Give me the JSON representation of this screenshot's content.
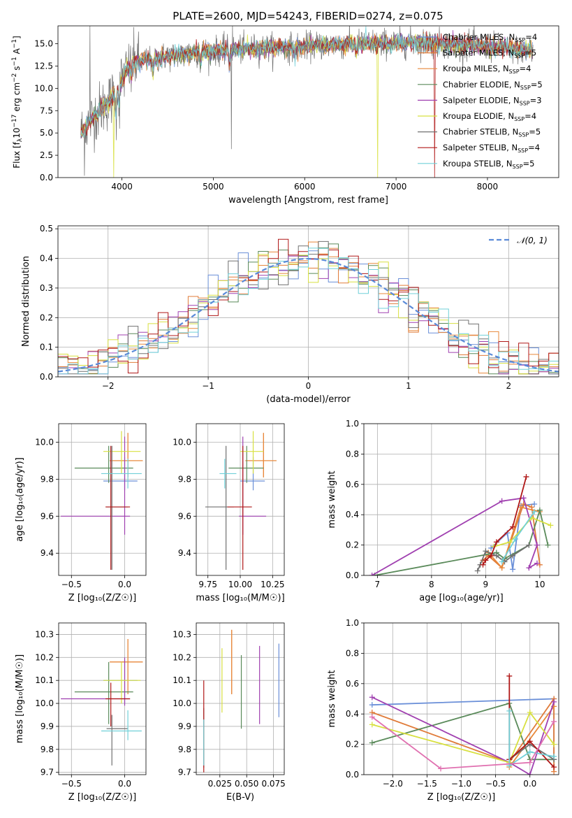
{
  "colors": {
    "miles_chabrier": "#6a8fd8",
    "miles_salpeter": "#e07b39",
    "miles_kroupa": "#e8883a",
    "elodie_chabrier": "#5a8a5a",
    "elodie_salpeter": "#a040b0",
    "elodie_kroupa": "#d8e040",
    "stelib_chabrier": "#707070",
    "stelib_salpeter": "#b01818",
    "stelib_kroupa": "#70d0d8"
  },
  "spectrum": {
    "title": "PLATE=2600, MJD=54243, FIBERID=0274, z=0.075",
    "xlabel": "wavelength [Angstrom, rest frame]",
    "ylabel": "Flux [f",
    "ylabel_sub": "λ",
    "ylabel_rest": "10",
    "ylabel_exp1": "−17",
    "ylabel_mid": " erg cm",
    "ylabel_exp2": "−2",
    "ylabel_mid2": " s",
    "ylabel_exp3": "−1",
    "ylabel_mid3": " A",
    "ylabel_exp4": "−1",
    "ylabel_end": "]",
    "xticks": [
      "4000",
      "5000",
      "6000",
      "7000",
      "8000"
    ],
    "yticks": [
      "0.0",
      "2.5",
      "5.0",
      "7.5",
      "10.0",
      "12.5",
      "15.0"
    ],
    "legend": [
      {
        "pre": "Chabrier MILES, N",
        "sub": "SSP",
        "post": "=4"
      },
      {
        "pre": "Salpeter MILES, N",
        "sub": "SSP",
        "post": "=5"
      },
      {
        "pre": "Kroupa MILES, N",
        "sub": "SSP",
        "post": "=4"
      },
      {
        "pre": "Chabrier ELODIE, N",
        "sub": "SSP",
        "post": "=5"
      },
      {
        "pre": "Salpeter ELODIE, N",
        "sub": "SSP",
        "post": "=3"
      },
      {
        "pre": "Kroupa ELODIE, N",
        "sub": "SSP",
        "post": "=4"
      },
      {
        "pre": "Chabrier STELIB, N",
        "sub": "SSP",
        "post": "=5"
      },
      {
        "pre": "Salpeter STELIB, N",
        "sub": "SSP",
        "post": "=4"
      },
      {
        "pre": "Kroupa STELIB, N",
        "sub": "SSP",
        "post": "=5"
      }
    ]
  },
  "residuals": {
    "xlabel": "(data-model)/error",
    "ylabel": "Normed distribution",
    "legend": "𝒩(0, 1)",
    "xticks": [
      "−2",
      "−1",
      "0",
      "1",
      "2"
    ],
    "yticks": [
      "0.0",
      "0.1",
      "0.2",
      "0.3",
      "0.4",
      "0.5"
    ]
  },
  "age_z": {
    "xlabel": "Z [log₁₀(Z/Z☉)]",
    "ylabel": "age  [log₁₀(age/yr)]",
    "xticks": [
      "−0.5",
      "0.0"
    ],
    "yticks": [
      "9.4",
      "9.6",
      "9.8",
      "10.0"
    ]
  },
  "age_mass": {
    "xlabel": "mass [log₁₀(M/M☉)]",
    "xticks": [
      "9.75",
      "10.00",
      "10.25"
    ],
    "yticks": [
      "9.4",
      "9.6",
      "9.8",
      "10.0"
    ]
  },
  "mw_age": {
    "xlabel": "age  [log₁₀(age/yr)]",
    "ylabel": "mass weight",
    "xticks": [
      "7",
      "8",
      "9",
      "10"
    ],
    "yticks": [
      "0.0",
      "0.2",
      "0.4",
      "0.6",
      "0.8",
      "1.0"
    ]
  },
  "mass_z": {
    "xlabel": "Z [log₁₀(Z/Z☉)]",
    "ylabel": "mass [log₁₀(M/M☉)]",
    "xticks": [
      "−0.5",
      "0.0"
    ],
    "yticks": [
      "9.7",
      "9.8",
      "9.9",
      "10.0",
      "10.1",
      "10.2",
      "10.3"
    ]
  },
  "mass_ebv": {
    "xlabel": "E(B-V)",
    "xticks": [
      "0.025",
      "0.050",
      "0.075"
    ],
    "yticks": [
      "9.7",
      "9.8",
      "9.9",
      "10.0",
      "10.1",
      "10.2",
      "10.3"
    ]
  },
  "mw_z": {
    "xlabel": "Z [log₁₀(Z/Z☉)]",
    "ylabel": "mass weight",
    "xticks": [
      "−2.0",
      "−1.5",
      "−1.0",
      "−0.5",
      "0.0"
    ],
    "yticks": [
      "0.0",
      "0.2",
      "0.4",
      "0.6",
      "0.8",
      "1.0"
    ]
  },
  "chart_data": [
    {
      "type": "line",
      "title": "PLATE=2600, MJD=54243, FIBERID=0274, z=0.075",
      "xlabel": "wavelength [Angstrom, rest frame]",
      "xlim": [
        3300,
        8780
      ],
      "ylim": [
        0,
        17
      ],
      "grid": false,
      "legend_position": "right",
      "continuum": {
        "x": [
          3550,
          3700,
          3900,
          4000,
          4100,
          4300,
          4500,
          4800,
          5000,
          5200,
          5500,
          5800,
          6000,
          6300,
          6600,
          6900,
          7100,
          7300,
          7500,
          7800,
          8100,
          8400,
          8500
        ],
        "y": [
          5.0,
          7.0,
          9.0,
          11.0,
          12.8,
          13.2,
          13.6,
          14.0,
          14.2,
          14.3,
          14.5,
          14.6,
          14.7,
          14.9,
          15.0,
          15.1,
          15.1,
          15.1,
          15.0,
          14.8,
          14.6,
          14.3,
          14.2
        ]
      },
      "series_names": [
        "Chabrier MILES",
        "Salpeter MILES",
        "Kroupa MILES",
        "Chabrier ELODIE",
        "Salpeter ELODIE",
        "Kroupa ELODIE",
        "Chabrier STELIB",
        "Salpeter STELIB",
        "Kroupa STELIB"
      ],
      "model_dropouts": [
        {
          "series": 5,
          "x": 3910
        },
        {
          "series": 5,
          "x": 6800
        },
        {
          "series": 7,
          "x": 7420
        }
      ]
    },
    {
      "type": "line",
      "xlabel": "(data-model)/error",
      "ylabel": "Normed distribution",
      "xlim": [
        -2.5,
        2.5
      ],
      "ylim": [
        0,
        0.51
      ],
      "grid": true,
      "reference": {
        "name": "𝒩(0, 1)",
        "mean": 0,
        "sigma": 1
      },
      "histogram_bins": {
        "start": -2.5,
        "width": 0.1,
        "count": 50
      }
    },
    {
      "type": "scatter",
      "xlabel": "Z [log₁₀(Z/Z☉)]",
      "ylabel": "age  [log₁₀(age/yr)]",
      "xlim": [
        -0.62,
        0.2
      ],
      "ylim": [
        9.28,
        10.1
      ],
      "points": [
        {
          "series": "Chabrier MILES",
          "x": 0.0,
          "xerr": [
            0.2,
            0.12
          ],
          "y": 9.79,
          "yerr": [
            0.05,
            0.13
          ]
        },
        {
          "series": "Salpeter MILES",
          "x": 0.03,
          "xerr": [
            0.17,
            0.14
          ],
          "y": 9.9,
          "yerr": [
            0.09,
            0.15
          ]
        },
        {
          "series": "Kroupa MILES",
          "x": 0.03,
          "xerr": [
            0.17,
            0.14
          ],
          "y": 9.9,
          "yerr": [
            0.09,
            0.15
          ]
        },
        {
          "series": "Chabrier ELODIE",
          "x": -0.15,
          "xerr": [
            0.32,
            0.23
          ],
          "y": 9.86,
          "yerr": [
            0.08,
            0.12
          ]
        },
        {
          "series": "Salpeter ELODIE",
          "x": 0.0,
          "xerr": [
            0.6,
            0.05
          ],
          "y": 9.6,
          "yerr": [
            0.1,
            0.43
          ]
        },
        {
          "series": "Kroupa ELODIE",
          "x": -0.03,
          "xerr": [
            0.17,
            0.18
          ],
          "y": 9.95,
          "yerr": [
            0.12,
            0.11
          ]
        },
        {
          "series": "Chabrier STELIB",
          "x": -0.12,
          "xerr": [
            0.05,
            0.15
          ],
          "y": 9.65,
          "yerr": [
            0.34,
            0.33
          ]
        },
        {
          "series": "Salpeter STELIB",
          "x": -0.13,
          "xerr": [
            0.05,
            0.18
          ],
          "y": 9.65,
          "yerr": [
            0.34,
            0.33
          ]
        },
        {
          "series": "Kroupa STELIB",
          "x": 0.03,
          "xerr": [
            0.25,
            0.13
          ],
          "y": 9.83,
          "yerr": [
            0.08,
            0.08
          ]
        }
      ]
    },
    {
      "type": "scatter",
      "xlabel": "mass [log₁₀(M/M☉)]",
      "xlim": [
        9.66,
        10.34
      ],
      "ylim": [
        9.28,
        10.1
      ],
      "points": [
        {
          "series": "Chabrier MILES",
          "x": 10.1,
          "xerr": [
            0.1,
            0.09
          ],
          "y": 9.79,
          "yerr": [
            0.05,
            0.13
          ]
        },
        {
          "series": "Salpeter MILES",
          "x": 10.18,
          "xerr": [
            0.14,
            0.1
          ],
          "y": 9.9,
          "yerr": [
            0.09,
            0.15
          ]
        },
        {
          "series": "Kroupa MILES",
          "x": 10.18,
          "xerr": [
            0.14,
            0.1
          ],
          "y": 9.9,
          "yerr": [
            0.09,
            0.15
          ]
        },
        {
          "series": "Chabrier ELODIE",
          "x": 10.05,
          "xerr": [
            0.14,
            0.13
          ],
          "y": 9.86,
          "yerr": [
            0.08,
            0.12
          ]
        },
        {
          "series": "Salpeter ELODIE",
          "x": 10.02,
          "xerr": [
            0.03,
            0.18
          ],
          "y": 9.6,
          "yerr": [
            0.1,
            0.43
          ]
        },
        {
          "series": "Kroupa ELODIE",
          "x": 10.1,
          "xerr": [
            0.1,
            0.08
          ],
          "y": 9.95,
          "yerr": [
            0.12,
            0.11
          ]
        },
        {
          "series": "Chabrier STELIB",
          "x": 9.89,
          "xerr": [
            0.16,
            0.06
          ],
          "y": 9.65,
          "yerr": [
            0.34,
            0.33
          ]
        },
        {
          "series": "Salpeter STELIB",
          "x": 10.02,
          "xerr": [
            0.12,
            0.07
          ],
          "y": 9.65,
          "yerr": [
            0.34,
            0.33
          ]
        },
        {
          "series": "Kroupa STELIB",
          "x": 9.88,
          "xerr": [
            0.04,
            0.09
          ],
          "y": 9.83,
          "yerr": [
            0.08,
            0.08
          ]
        }
      ]
    },
    {
      "type": "line",
      "xlabel": "age  [log₁₀(age/yr)]",
      "ylabel": "mass weight",
      "xlim": [
        6.75,
        10.35
      ],
      "ylim": [
        0,
        1
      ],
      "grid": true,
      "series": [
        {
          "name": "Chabrier MILES",
          "x": [
            9.1,
            9.4,
            9.5,
            9.65,
            9.9
          ],
          "y": [
            0.18,
            0.28,
            0.04,
            0.46,
            0.47
          ]
        },
        {
          "name": "Salpeter MILES",
          "x": [
            8.95,
            9.05,
            9.3,
            9.7,
            9.85,
            10.0
          ],
          "y": [
            0.1,
            0.13,
            0.05,
            0.47,
            0.45,
            0.07
          ]
        },
        {
          "name": "Kroupa MILES",
          "x": [
            9.05,
            9.3,
            9.65,
            10.0
          ],
          "y": [
            0.15,
            0.05,
            0.45,
            0.42
          ]
        },
        {
          "name": "Chabrier ELODIE",
          "x": [
            6.95,
            9.2,
            9.35,
            9.8,
            10.0,
            10.15
          ],
          "y": [
            0.0,
            0.15,
            0.11,
            0.2,
            0.43,
            0.2
          ]
        },
        {
          "name": "Salpeter ELODIE",
          "x": [
            6.9,
            9.3,
            9.7,
            9.95,
            9.8,
            9.95
          ],
          "y": [
            0.0,
            0.49,
            0.51,
            0.2,
            0.05,
            0.08
          ]
        },
        {
          "name": "Kroupa ELODIE",
          "x": [
            9.15,
            9.45,
            9.85,
            10.2
          ],
          "y": [
            0.19,
            0.22,
            0.38,
            0.33
          ]
        },
        {
          "name": "Chabrier STELIB",
          "x": [
            8.85,
            8.9,
            9.0,
            9.2,
            9.35,
            9.5,
            9.8
          ],
          "y": [
            0.03,
            0.07,
            0.16,
            0.13,
            0.09,
            0.13,
            0.2
          ]
        },
        {
          "name": "Salpeter STELIB",
          "x": [
            8.95,
            9.0,
            9.1,
            9.2,
            9.5,
            9.75
          ],
          "y": [
            0.07,
            0.1,
            0.13,
            0.22,
            0.32,
            0.65
          ]
        },
        {
          "name": "Kroupa STELIB",
          "x": [
            9.3,
            9.55,
            9.9
          ],
          "y": [
            0.09,
            0.24,
            0.42
          ]
        }
      ]
    },
    {
      "type": "scatter",
      "xlabel": "Z [log₁₀(Z/Z☉)]",
      "ylabel": "mass [log₁₀(M/M☉)]",
      "xlim": [
        -0.62,
        0.2
      ],
      "ylim": [
        9.69,
        10.35
      ],
      "points": [
        {
          "series": "Chabrier MILES",
          "x": 0.0,
          "xerr": [
            0.2,
            0.12
          ],
          "y": 10.1,
          "yerr": [
            0.1,
            0.09
          ]
        },
        {
          "series": "Salpeter MILES",
          "x": 0.03,
          "xerr": [
            0.17,
            0.14
          ],
          "y": 10.18,
          "yerr": [
            0.14,
            0.1
          ]
        },
        {
          "series": "Kroupa MILES",
          "x": 0.03,
          "xerr": [
            0.17,
            0.14
          ],
          "y": 10.18,
          "yerr": [
            0.14,
            0.1
          ]
        },
        {
          "series": "Chabrier ELODIE",
          "x": -0.15,
          "xerr": [
            0.32,
            0.23
          ],
          "y": 10.05,
          "yerr": [
            0.14,
            0.13
          ]
        },
        {
          "series": "Salpeter ELODIE",
          "x": 0.0,
          "xerr": [
            0.6,
            0.05
          ],
          "y": 10.02,
          "yerr": [
            0.03,
            0.18
          ]
        },
        {
          "series": "Kroupa ELODIE",
          "x": -0.03,
          "xerr": [
            0.17,
            0.18
          ],
          "y": 10.1,
          "yerr": [
            0.1,
            0.08
          ]
        },
        {
          "series": "Chabrier STELIB",
          "x": -0.12,
          "xerr": [
            0.05,
            0.15
          ],
          "y": 9.89,
          "yerr": [
            0.16,
            0.06
          ]
        },
        {
          "series": "Salpeter STELIB",
          "x": -0.13,
          "xerr": [
            0.05,
            0.18
          ],
          "y": 10.02,
          "yerr": [
            0.12,
            0.07
          ]
        },
        {
          "series": "Kroupa STELIB",
          "x": 0.03,
          "xerr": [
            0.25,
            0.13
          ],
          "y": 9.88,
          "yerr": [
            0.04,
            0.09
          ]
        }
      ]
    },
    {
      "type": "scatter",
      "xlabel": "E(B-V)",
      "xlim": [
        0.003,
        0.085
      ],
      "ylim": [
        9.69,
        10.35
      ],
      "points": [
        {
          "series": "Chabrier MILES",
          "x": 0.08,
          "y": 10.1,
          "yerr": [
            0.16,
            0.16
          ]
        },
        {
          "series": "Salpeter MILES",
          "x": 0.036,
          "y": 10.18,
          "yerr": [
            0.14,
            0.14
          ]
        },
        {
          "series": "Kroupa MILES",
          "x": 0.036,
          "y": 10.18,
          "yerr": [
            0.14,
            0.14
          ]
        },
        {
          "series": "Chabrier ELODIE",
          "x": 0.045,
          "y": 10.05,
          "yerr": [
            0.16,
            0.16
          ]
        },
        {
          "series": "Salpeter ELODIE",
          "x": 0.062,
          "y": 10.08,
          "yerr": [
            0.17,
            0.17
          ]
        },
        {
          "series": "Kroupa ELODIE",
          "x": 0.027,
          "y": 10.1,
          "yerr": [
            0.14,
            0.14
          ]
        },
        {
          "series": "Chabrier STELIB",
          "x": 0.01,
          "y": 9.85,
          "yerr": [
            0.13,
            0.13
          ]
        },
        {
          "series": "Salpeter STELIB",
          "x": 0.01,
          "y": 9.9,
          "yerr": [
            0.2,
            0.2
          ]
        },
        {
          "series": "Kroupa STELIB",
          "x": 0.01,
          "y": 9.83,
          "yerr": [
            0.1,
            0.1
          ]
        }
      ]
    },
    {
      "type": "line",
      "xlabel": "Z [log₁₀(Z/Z☉)]",
      "ylabel": "mass weight",
      "xlim": [
        -2.42,
        0.42
      ],
      "ylim": [
        0,
        1
      ],
      "grid": true,
      "series": [
        {
          "name": "Chabrier MILES",
          "x": [
            -2.3,
            0.35,
            0.35
          ],
          "y": [
            0.46,
            0.5,
            0.1
          ]
        },
        {
          "name": "Salpeter MILES",
          "x": [
            -2.3,
            -0.3,
            0.35,
            0.35
          ],
          "y": [
            0.41,
            0.08,
            0.5,
            0.02
          ]
        },
        {
          "name": "Kroupa MILES",
          "x": [
            -0.3,
            0.35
          ],
          "y": [
            0.05,
            0.45
          ]
        },
        {
          "name": "Chabrier ELODIE",
          "x": [
            -2.3,
            -0.3,
            0.0,
            0.35
          ],
          "y": [
            0.21,
            0.47,
            0.1,
            0.1
          ]
        },
        {
          "name": "Salpeter ELODIE",
          "x": [
            -2.3,
            -0.3,
            0.0,
            0.35
          ],
          "y": [
            0.51,
            0.08,
            0.0,
            0.48
          ]
        },
        {
          "name": "Kroupa ELODIE",
          "x": [
            -2.3,
            -0.3,
            0.0,
            0.35
          ],
          "y": [
            0.33,
            0.08,
            0.41,
            0.2
          ]
        },
        {
          "name": "Chabrier STELIB",
          "x": [
            -0.3,
            0.0,
            0.35
          ],
          "y": [
            0.1,
            0.2,
            0.1
          ]
        },
        {
          "name": "Salpeter STELIB",
          "x": [
            -0.3,
            -0.3,
            0.0,
            0.35
          ],
          "y": [
            0.65,
            0.1,
            0.22,
            0.05
          ]
        },
        {
          "name": "Kroupa STELIB",
          "x": [
            -0.3,
            -0.3,
            0.0,
            0.35
          ],
          "y": [
            0.42,
            0.06,
            0.15,
            0.12
          ]
        },
        {
          "name": "Kroupa ELODIE (pink)",
          "x": [
            -2.3,
            -1.3,
            0.0,
            0.35
          ],
          "y": [
            0.38,
            0.04,
            0.08,
            0.35
          ]
        }
      ]
    }
  ]
}
